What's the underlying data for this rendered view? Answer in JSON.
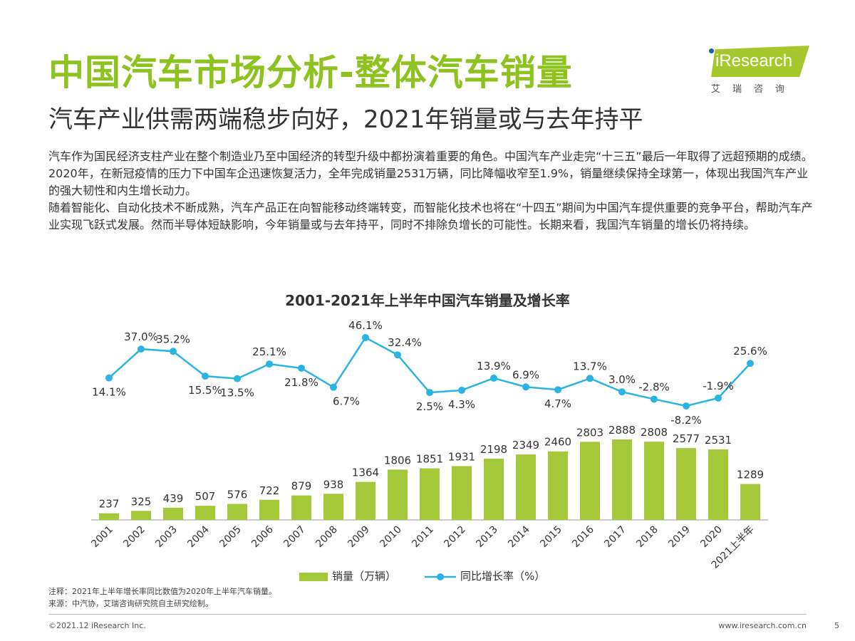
{
  "header": {
    "title": "中国汽车市场分析-整体汽车销量",
    "subtitle": "汽车产业供需两端稳步向好，2021年销量或与去年持平"
  },
  "logo": {
    "text": "iResearch",
    "cn": "艾瑞咨询"
  },
  "body": {
    "paragraphs": [
      "汽车作为国民经济支柱产业在整个制造业乃至中国经济的转型升级中都扮演着重要的角色。中国汽车产业走完“十三五”最后一年取得了远超预期的成绩。2020年，在新冠疫情的压力下中国车企迅速恢复活力，全年完成销量2531万辆，同比降幅收窄至1.9%，销量继续保持全球第一，体现出我国汽车产业的强大韧性和内生增长动力。",
      "随着智能化、自动化技术不断成熟，汽车产品正在向智能移动终端转变，而智能化技术也将在“十四五”期间为中国汽车提供重要的竞争平台，帮助汽车产业实现飞跃式发展。然而半导体短缺影响，今年销量或与去年持平，同时不排除负增长的可能性。长期来看，我国汽车销量的增长仍将持续。"
    ]
  },
  "chart_data": {
    "type": "bar+line",
    "title": "2001-2021年上半年中国汽车销量及增长率",
    "categories": [
      "2001",
      "2002",
      "2003",
      "2004",
      "2005",
      "2006",
      "2007",
      "2008",
      "2009",
      "2010",
      "2011",
      "2012",
      "2013",
      "2014",
      "2015",
      "2016",
      "2017",
      "2018",
      "2019",
      "2020",
      "2021上半年"
    ],
    "series": [
      {
        "name": "销量（万辆）",
        "type": "bar",
        "color": "#a4c83a",
        "values": [
          237,
          325,
          439,
          507,
          576,
          722,
          879,
          938,
          1364,
          1806,
          1851,
          1931,
          2198,
          2349,
          2460,
          2803,
          2888,
          2808,
          2577,
          2531,
          1289
        ],
        "labels": [
          "237",
          "325",
          "439",
          "507",
          "576",
          "722",
          "879",
          "938",
          "1364",
          "1806",
          "1851",
          "1931",
          "2198",
          "2349",
          "2460",
          "2803",
          "2888",
          "2808",
          "2577",
          "2531",
          "1289"
        ]
      },
      {
        "name": "同比增长率（%）",
        "type": "line",
        "color": "#2ab4e4",
        "values": [
          14.1,
          37.0,
          35.2,
          15.5,
          13.5,
          25.1,
          21.8,
          6.7,
          46.1,
          32.4,
          2.5,
          4.3,
          13.9,
          6.9,
          4.7,
          13.7,
          3.0,
          -2.8,
          -8.2,
          -1.9,
          25.6
        ],
        "labels": [
          "14.1%",
          "37.0%",
          "35.2%",
          "15.5%",
          "13.5%",
          "25.1%",
          "21.8%",
          "6.7%",
          "46.1%",
          "32.4%",
          "2.5%",
          "4.3%",
          "13.9%",
          "6.9%",
          "4.7%",
          "13.7%",
          "3.0%",
          "-2.8%",
          "-8.2%",
          "-1.9%",
          "25.6%"
        ]
      }
    ],
    "legend": "bottom",
    "grid": false
  },
  "notes": {
    "note": "注释：2021年上半年增长率同比数值为2020年上半年汽车销量。",
    "source": "来源：中汽协，艾瑞咨询研究院自主研究绘制。"
  },
  "footer": {
    "copyright": "©2021.12 iResearch Inc.",
    "url": "www.iresearch.com.cn",
    "page": "5"
  }
}
